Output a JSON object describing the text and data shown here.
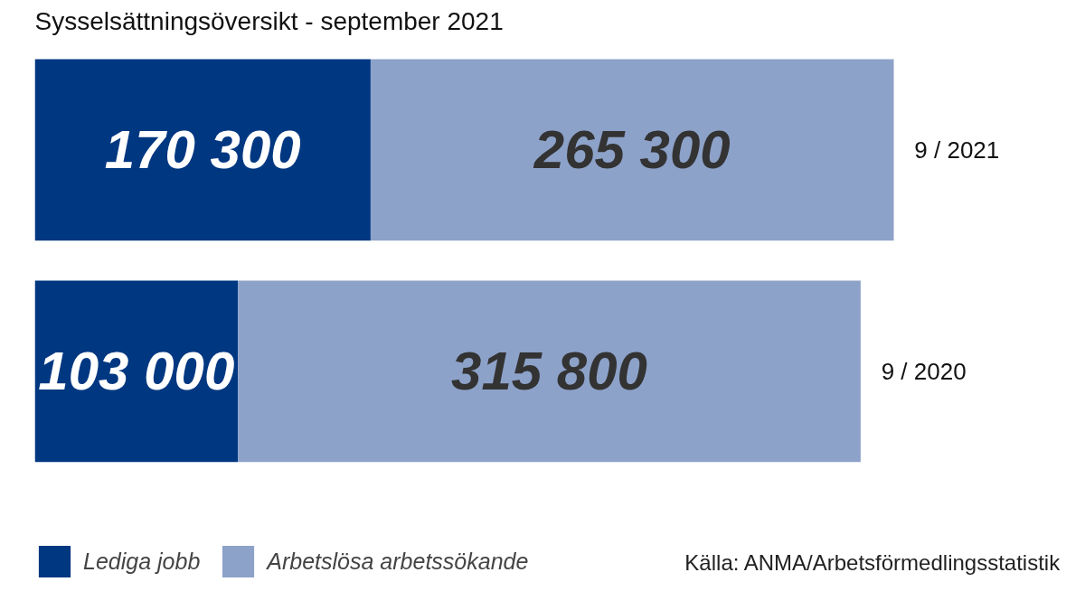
{
  "chart_data": {
    "type": "bar",
    "orientation": "horizontal",
    "stacked": true,
    "title": "Sysselsättningsöversikt - september 2021",
    "categories": [
      "9 / 2021",
      "9 / 2020"
    ],
    "series": [
      {
        "name": "Lediga jobb",
        "color": "#003781",
        "values": [
          170300,
          103000
        ],
        "value_labels": [
          "170 300",
          "103 000"
        ]
      },
      {
        "name": "Arbetslösa arbetssökande",
        "color": "#8da2c9",
        "values": [
          265300,
          315800
        ],
        "value_labels": [
          "265 300",
          "315 800"
        ]
      }
    ],
    "legend": "bottom left",
    "grid": false,
    "annotations": [
      "Källa: ANMA/Arbetsförmedlingsstatistik"
    ]
  }
}
